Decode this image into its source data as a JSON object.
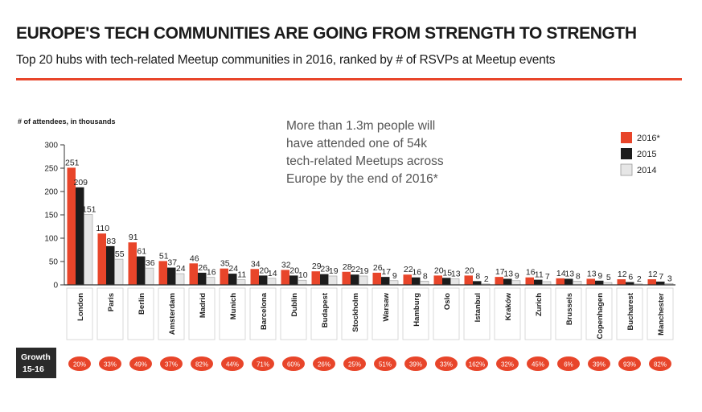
{
  "title": "EUROPE'S TECH COMMUNITIES ARE GOING FROM STRENGTH TO STRENGTH",
  "subtitle": "Top 20 hubs with tech-related Meetup communities in 2016, ranked by # of RSVPs at Meetup events",
  "annotation_lines": [
    "More than 1.3m people will",
    "have attended one of 54k",
    "tech-related Meetups across",
    "Europe by the end of 2016*"
  ],
  "growth_label_lines": [
    "Growth",
    "15-16"
  ],
  "colors": {
    "2016": "#e8452a",
    "2015": "#1c1c1c",
    "2014": "#e6e6e6",
    "accent": "#e8452a",
    "growth_box": "#2a2a2a"
  },
  "chart_data": {
    "type": "bar",
    "ylabel": "# of attendees, in thousands",
    "ylim": [
      0,
      300
    ],
    "yticks": [
      0,
      50,
      100,
      150,
      200,
      250,
      300
    ],
    "categories": [
      "London",
      "Paris",
      "Berlin",
      "Amsterdam",
      "Madrid",
      "Munich",
      "Barcelona",
      "Dublin",
      "Budapest",
      "Stockholm",
      "Warsaw",
      "Hamburg",
      "Oslo",
      "Istanbul",
      "Kraków",
      "Zurich",
      "Brussels",
      "Copenhagen",
      "Bucharest",
      "Manchester"
    ],
    "series": [
      {
        "name": "2016*",
        "values": [
          251,
          110,
          91,
          51,
          46,
          35,
          34,
          32,
          29,
          28,
          26,
          22,
          20,
          20,
          17,
          16,
          14,
          13,
          12,
          12
        ]
      },
      {
        "name": "2015",
        "values": [
          209,
          83,
          61,
          37,
          26,
          24,
          20,
          20,
          23,
          22,
          17,
          16,
          15,
          8,
          13,
          11,
          13,
          9,
          6,
          7
        ]
      },
      {
        "name": "2014",
        "values": [
          151,
          55,
          36,
          24,
          16,
          11,
          14,
          10,
          19,
          19,
          9,
          8,
          13,
          2,
          9,
          7,
          8,
          5,
          2,
          3
        ]
      }
    ],
    "growth_15_16": [
      "20%",
      "33%",
      "49%",
      "37%",
      "82%",
      "44%",
      "71%",
      "60%",
      "26%",
      "25%",
      "51%",
      "39%",
      "33%",
      "162%",
      "32%",
      "45%",
      "6%",
      "39%",
      "93%",
      "82%"
    ],
    "legend_position": "top-right",
    "grid": false
  }
}
